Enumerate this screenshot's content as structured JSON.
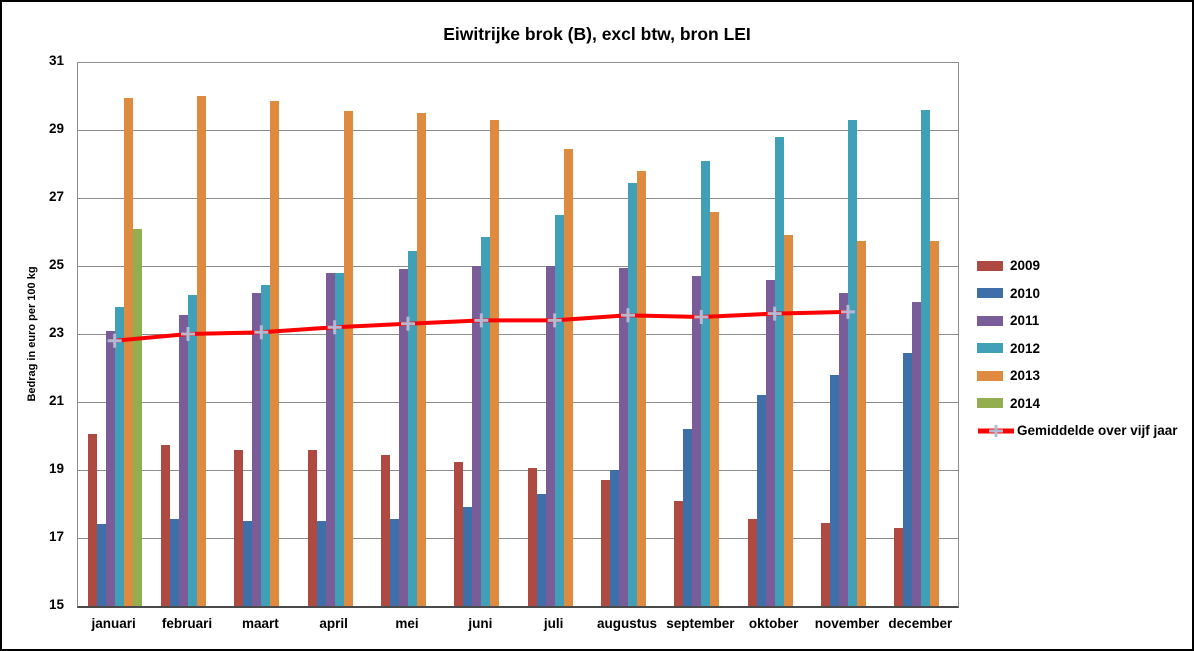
{
  "chart_data": {
    "type": "bar",
    "title": "Eiwitrijke brok (B), excl btw, bron LEI",
    "xlabel": "",
    "ylabel": "Bedrag in euro per 100 kg",
    "ylim": [
      15,
      31
    ],
    "yticks": [
      15,
      17,
      19,
      21,
      23,
      25,
      27,
      29,
      31
    ],
    "grid": true,
    "gridline_color": "#8c8c8c",
    "legend_position": "right",
    "categories": [
      "januari",
      "februari",
      "maart",
      "april",
      "mei",
      "juni",
      "juli",
      "augustus",
      "september",
      "oktober",
      "november",
      "december"
    ],
    "series": [
      {
        "name": "2009",
        "color": "#AE4A42",
        "values": [
          20.05,
          19.75,
          19.6,
          19.6,
          19.45,
          19.25,
          19.05,
          18.7,
          18.1,
          17.55,
          17.45,
          17.3
        ]
      },
      {
        "name": "2010",
        "color": "#3E6FA8",
        "values": [
          17.4,
          17.55,
          17.5,
          17.5,
          17.55,
          17.9,
          18.3,
          19.0,
          20.2,
          21.2,
          21.8,
          22.45
        ]
      },
      {
        "name": "2011",
        "color": "#7A5C99",
        "values": [
          23.1,
          23.55,
          24.2,
          24.8,
          24.9,
          25.0,
          25.0,
          24.95,
          24.7,
          24.6,
          24.2,
          23.95
        ]
      },
      {
        "name": "2012",
        "color": "#3FA0B8",
        "values": [
          23.8,
          24.15,
          24.45,
          24.8,
          25.45,
          25.85,
          26.5,
          27.45,
          28.1,
          28.8,
          29.3,
          29.6
        ]
      },
      {
        "name": "2013",
        "color": "#DE8A3F",
        "values": [
          29.95,
          30.0,
          29.85,
          29.55,
          29.5,
          29.3,
          28.45,
          27.8,
          26.6,
          25.9,
          25.75,
          25.75
        ]
      },
      {
        "name": "2014",
        "color": "#92AE4F",
        "values": [
          26.1,
          null,
          null,
          null,
          null,
          null,
          null,
          null,
          null,
          null,
          null,
          null
        ]
      }
    ],
    "line_series": {
      "name": "Gemiddelde over vijf jaar",
      "color": "#FF0000",
      "marker_color": "#B3B9D2",
      "marker": "plus",
      "values": [
        22.8,
        23.0,
        23.05,
        23.2,
        23.3,
        23.4,
        23.4,
        23.55,
        23.5,
        23.6,
        23.65,
        null
      ]
    }
  }
}
